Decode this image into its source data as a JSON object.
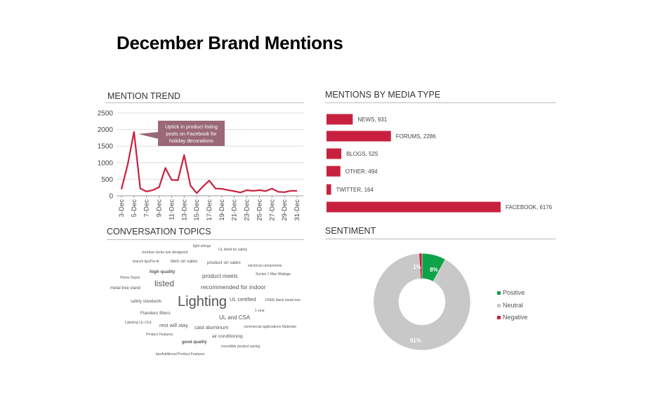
{
  "title": "December Brand Mentions",
  "sections": {
    "trend": "MENTION TREND",
    "media": "MENTIONS BY MEDIA TYPE",
    "topics": "CONVERSATION TOPICS",
    "sentiment": "SENTIMENT"
  },
  "chart_data": [
    {
      "type": "line",
      "title": "MENTION TREND",
      "x": [
        "3-Dec",
        "4-Dec",
        "5-Dec",
        "6-Dec",
        "7-Dec",
        "8-Dec",
        "9-Dec",
        "10-Dec",
        "11-Dec",
        "12-Dec",
        "13-Dec",
        "14-Dec",
        "15-Dec",
        "16-Dec",
        "17-Dec",
        "18-Dec",
        "19-Dec",
        "20-Dec",
        "21-Dec",
        "22-Dec",
        "23-Dec",
        "24-Dec",
        "25-Dec",
        "26-Dec",
        "27-Dec",
        "28-Dec",
        "29-Dec",
        "30-Dec",
        "31-Dec"
      ],
      "xticks": [
        "3-Dec",
        "5-Dec",
        "7-Dec",
        "9-Dec",
        "11-Dec",
        "13-Dec",
        "15-Dec",
        "17-Dec",
        "19-Dec",
        "21-Dec",
        "23-Dec",
        "25-Dec",
        "27-Dec",
        "29-Dec",
        "31-Dec"
      ],
      "values": [
        200,
        950,
        1930,
        220,
        130,
        170,
        260,
        840,
        480,
        470,
        1230,
        310,
        80,
        280,
        460,
        220,
        210,
        170,
        140,
        100,
        170,
        150,
        170,
        140,
        220,
        120,
        110,
        150,
        150
      ],
      "ylim": [
        0,
        2500
      ],
      "yticks": [
        0,
        500,
        1000,
        1500,
        2000,
        2500
      ],
      "grid": true,
      "color": "#c8213f",
      "annotation": {
        "text": "Uptick in product listing posts on Facebook for holiday decorations",
        "x": "5-Dec",
        "color": "#9a6876"
      }
    },
    {
      "type": "bar",
      "title": "MENTIONS BY MEDIA TYPE",
      "orientation": "horizontal",
      "categories": [
        "NEWS",
        "FORUMS",
        "BLOGS",
        "OTHER",
        "TWITTER",
        "FACEBOOK"
      ],
      "values": [
        931,
        2286,
        525,
        494,
        164,
        6176
      ],
      "labels": [
        "NEWS, 931",
        "FORUMS, 2286",
        "BLOGS, 525",
        "OTHER, 494",
        "TWITTER, 164",
        "FACEBOOK, 6176"
      ],
      "color": "#c8213f"
    },
    {
      "type": "pie",
      "title": "SENTIMENT",
      "donut": true,
      "categories": [
        "Positive",
        "Neutral",
        "Negative"
      ],
      "values": [
        8,
        91,
        1
      ],
      "labels": [
        "8%",
        "91%",
        "1%"
      ],
      "colors": [
        "#0ea34a",
        "#c8c8c8",
        "#c8213f"
      ],
      "legend": "right"
    }
  ],
  "word_cloud": [
    {
      "text": "light strings",
      "weight": 1
    },
    {
      "text": "mortise locks are designed",
      "weight": 1
    },
    {
      "text": "UL listed for safety",
      "weight": 1
    },
    {
      "text": "branch tipsPre-lit",
      "weight": 1
    },
    {
      "text": "item on sales",
      "weight": 2
    },
    {
      "text": "product on sales",
      "weight": 2
    },
    {
      "text": "electrical components",
      "weight": 1
    },
    {
      "text": "high quality",
      "weight": 2
    },
    {
      "text": "Home Depot",
      "weight": 1
    },
    {
      "text": "product meets",
      "weight": 3
    },
    {
      "text": "Socket 1 Max Wattage",
      "weight": 1
    },
    {
      "text": "listed",
      "weight": 5
    },
    {
      "text": "metal tree stand",
      "weight": 1
    },
    {
      "text": "recommended for indoor",
      "weight": 3
    },
    {
      "text": "safety standards",
      "weight": 1
    },
    {
      "text": "Lighting",
      "weight": 8
    },
    {
      "text": "UL certified",
      "weight": 3
    },
    {
      "text": "FREE black metal tree",
      "weight": 1
    },
    {
      "text": "Flanders filters",
      "weight": 2
    },
    {
      "text": "1 year",
      "weight": 1
    },
    {
      "text": "UL and CSA",
      "weight": 3
    },
    {
      "text": "Labeling UL-CUL",
      "weight": 1
    },
    {
      "text": "rest will stay",
      "weight": 3
    },
    {
      "text": "cast aluminum",
      "weight": 3
    },
    {
      "text": "commercial applications Materials",
      "weight": 1
    },
    {
      "text": "Product Features",
      "weight": 1
    },
    {
      "text": "air conditioning",
      "weight": 2
    },
    {
      "text": "good quality",
      "weight": 2
    },
    {
      "text": "incredible product saving",
      "weight": 1
    },
    {
      "text": "tipsAdditional Product Features",
      "weight": 1
    }
  ]
}
